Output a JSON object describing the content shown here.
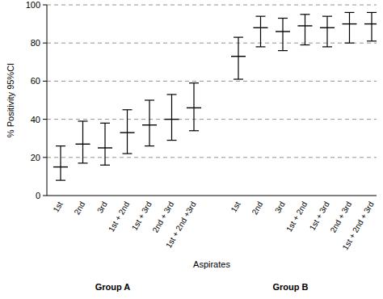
{
  "chart_data": {
    "type": "errorbar",
    "x_label": "Aspirates",
    "y_label": "% Positivity 95%CI",
    "categories": [
      "1st",
      "2nd",
      "3rd",
      "1st + 2nd",
      "1st + 3rd",
      "2nd + 3rd",
      "1st + 2nd +3rd",
      null,
      "1st",
      "2nd",
      "3rd",
      "1st + 2nd",
      "1st + 3rd",
      "2nd + 3rd",
      "1st + 2nd + 3rd"
    ],
    "values": [
      15,
      27,
      25,
      33,
      37,
      40,
      46,
      null,
      73,
      88,
      86,
      89,
      88,
      90,
      90
    ],
    "ci_low": [
      8,
      17,
      16,
      22,
      26,
      29,
      34,
      null,
      61,
      78,
      76,
      79,
      78,
      80,
      81
    ],
    "ci_high": [
      26,
      39,
      38,
      45,
      50,
      53,
      59,
      null,
      83,
      94,
      93,
      95,
      94,
      96,
      96
    ],
    "annotations": [
      "Group A",
      "Group B"
    ],
    "color": "#000000",
    "ylim": [
      0,
      100
    ],
    "yticks": [
      0,
      20,
      40,
      60,
      80,
      100
    ],
    "grid": true
  }
}
